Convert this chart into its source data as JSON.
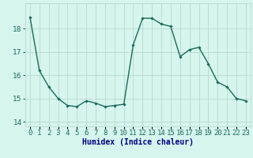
{
  "x": [
    0,
    1,
    2,
    3,
    4,
    5,
    6,
    7,
    8,
    9,
    10,
    11,
    12,
    13,
    14,
    15,
    16,
    17,
    18,
    19,
    20,
    21,
    22,
    23
  ],
  "y": [
    18.5,
    16.2,
    15.5,
    15.0,
    14.7,
    14.65,
    14.9,
    14.8,
    14.65,
    14.7,
    14.75,
    17.3,
    18.45,
    18.45,
    18.2,
    18.1,
    16.8,
    17.1,
    17.2,
    16.5,
    15.7,
    15.5,
    15.0,
    14.9
  ],
  "line_color": "#1a6b5a",
  "marker": "D",
  "marker_size": 1.8,
  "line_width": 1.0,
  "bg_color": "#d6f5ef",
  "grid_color": "#b8d8d2",
  "xlabel": "Humidex (Indice chaleur)",
  "xlabel_fontsize": 7,
  "tick_fontsize": 6.5,
  "ylim": [
    13.8,
    19.1
  ],
  "xlim": [
    -0.5,
    23.5
  ],
  "yticks": [
    14,
    15,
    16,
    17,
    18
  ],
  "xtick_labels": [
    "0",
    "1",
    "2",
    "3",
    "4",
    "5",
    "6",
    "7",
    "8",
    "9",
    "10",
    "11",
    "12",
    "13",
    "14",
    "15",
    "16",
    "17",
    "18",
    "19",
    "20",
    "21",
    "22",
    "23"
  ]
}
